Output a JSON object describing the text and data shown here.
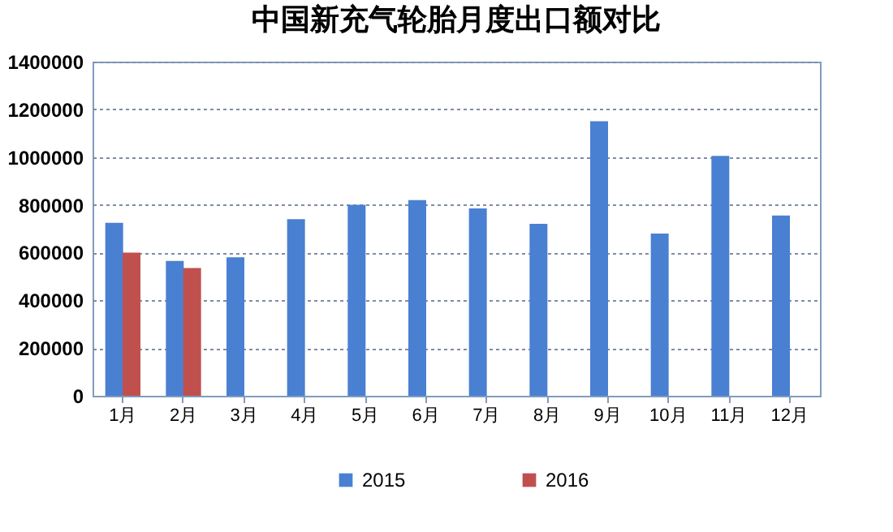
{
  "chart_data": {
    "type": "bar",
    "title": "中国新充气轮胎月度出口额对比",
    "categories": [
      "1月",
      "2月",
      "3月",
      "4月",
      "5月",
      "6月",
      "7月",
      "8月",
      "9月",
      "10月",
      "11月",
      "12月"
    ],
    "series": [
      {
        "name": "2015",
        "color": "#4a80d2",
        "values": [
          725000,
          565000,
          580000,
          740000,
          800000,
          820000,
          785000,
          720000,
          1150000,
          680000,
          1005000,
          755000
        ]
      },
      {
        "name": "2016",
        "color": "#c0504d",
        "values": [
          600000,
          535000,
          null,
          null,
          null,
          null,
          null,
          null,
          null,
          null,
          null,
          null
        ]
      }
    ],
    "ylim": [
      0,
      1400000
    ],
    "yticks": [
      0,
      200000,
      400000,
      600000,
      800000,
      1000000,
      1200000,
      1400000
    ],
    "grid": "y",
    "legend": "bottom"
  }
}
